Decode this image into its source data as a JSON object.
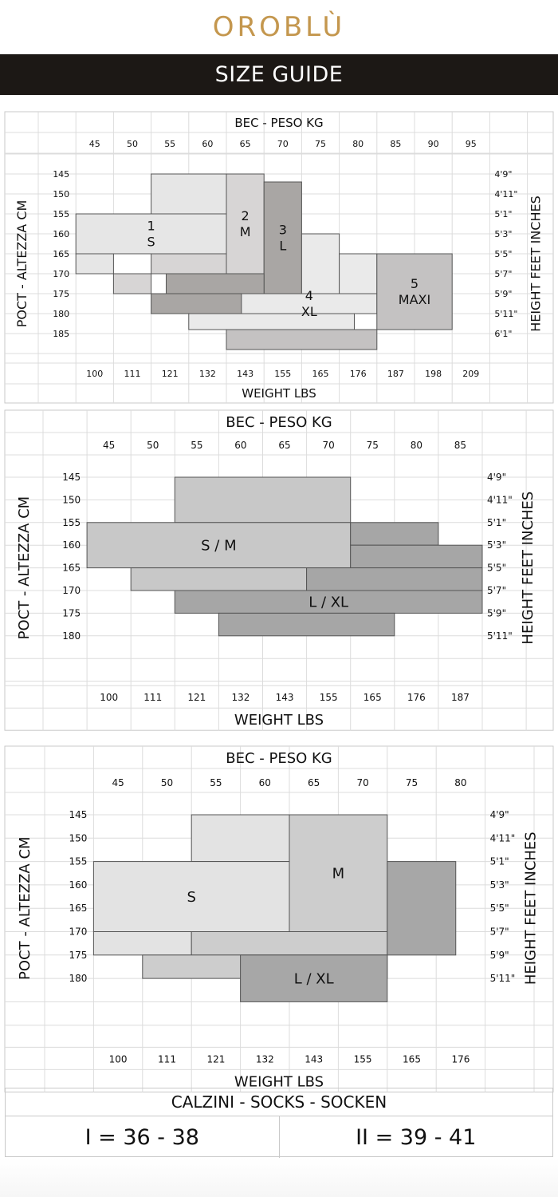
{
  "header": {
    "brand": "OROBLÙ",
    "title": "SIZE GUIDE"
  },
  "colors": {
    "brand": "#c4974e",
    "banner_bg": "#1c1815",
    "grid": "#d0d0d0",
    "outline": "#444444"
  },
  "chart_data": [
    {
      "type": "table",
      "title": "BEC - PESO KG",
      "xlabel": "WEIGHT LBS",
      "ylabel_left": "POCT - ALTEZZA CM",
      "ylabel_right": "HEIGHT FEET INCHES",
      "kg": [
        "45",
        "50",
        "55",
        "60",
        "65",
        "70",
        "75",
        "80",
        "85",
        "90",
        "95"
      ],
      "lbs": [
        "100",
        "111",
        "121",
        "132",
        "143",
        "155",
        "165",
        "176",
        "187",
        "198",
        "209"
      ],
      "cm": [
        "145",
        "150",
        "155",
        "160",
        "165",
        "170",
        "175",
        "180",
        "185"
      ],
      "ft": [
        "4'9\"",
        "4'11\"",
        "5'1\"",
        "5'3\"",
        "5'5\"",
        "5'7\"",
        "5'9\"",
        "5'11\"",
        "6'1\""
      ],
      "series": [
        {
          "name": "1 S",
          "label": [
            "1",
            "S"
          ],
          "color": "#e6e6e6",
          "steps": [
            [
              55,
              65,
              145,
              155
            ],
            [
              45,
              65,
              155,
              165
            ],
            [
              45,
              50,
              165,
              170
            ]
          ]
        },
        {
          "name": "2 M",
          "label": [
            "2",
            "M"
          ],
          "color": "#d7d5d5",
          "steps": [
            [
              65,
              70,
              145,
              170
            ],
            [
              55,
              65,
              165,
              170
            ],
            [
              50,
              55,
              170,
              175
            ]
          ]
        },
        {
          "name": "3 L",
          "label": [
            "3",
            "L"
          ],
          "color": "#a9a6a4",
          "steps": [
            [
              70,
              75,
              147,
              175
            ],
            [
              57,
              70,
              170,
              175
            ],
            [
              55,
              72,
              175,
              180
            ]
          ]
        },
        {
          "name": "4 XL",
          "label": [
            "4",
            "XL"
          ],
          "color": "#eaeaea",
          "steps": [
            [
              75,
              80,
              160,
              175
            ],
            [
              80,
              85,
              165,
              175
            ],
            [
              67,
              85,
              175,
              180
            ],
            [
              60,
              82,
              180,
              184
            ]
          ]
        },
        {
          "name": "5 MAXI",
          "label": [
            "5",
            "MAXI"
          ],
          "color": "#c4c2c2",
          "steps": [
            [
              85,
              95,
              165,
              184
            ],
            [
              65,
              85,
              184,
              189
            ]
          ]
        }
      ]
    },
    {
      "type": "table",
      "title": "BEC - PESO KG",
      "xlabel": "WEIGHT LBS",
      "ylabel_left": "POCT - ALTEZZA CM",
      "ylabel_right": "HEIGHT FEET INCHES",
      "kg": [
        "45",
        "50",
        "55",
        "60",
        "65",
        "70",
        "75",
        "80",
        "85"
      ],
      "lbs": [
        "100",
        "111",
        "121",
        "132",
        "143",
        "155",
        "165",
        "176",
        "187"
      ],
      "cm": [
        "145",
        "150",
        "155",
        "160",
        "165",
        "170",
        "175",
        "180"
      ],
      "ft": [
        "4'9\"",
        "4'11\"",
        "5'1\"",
        "5'3\"",
        "5'5\"",
        "5'7\"",
        "5'9\"",
        "5'11\""
      ],
      "series": [
        {
          "name": "S / M",
          "label": [
            "S / M"
          ],
          "color": "#c8c8c8",
          "steps": [
            [
              55,
              75,
              145,
              155
            ],
            [
              45,
              75,
              155,
              165
            ],
            [
              50,
              70,
              165,
              170
            ]
          ]
        },
        {
          "name": "L / XL",
          "label": [
            "L / XL"
          ],
          "color": "#a6a6a6",
          "steps": [
            [
              75,
              85,
              155,
              160
            ],
            [
              75,
              90,
              160,
              165
            ],
            [
              70,
              90,
              165,
              170
            ],
            [
              55,
              90,
              170,
              175
            ],
            [
              60,
              80,
              175,
              180
            ]
          ]
        }
      ]
    },
    {
      "type": "table",
      "title": "BEC - PESO KG",
      "xlabel": "WEIGHT LBS",
      "ylabel_left": "POCT - ALTEZZA CM",
      "ylabel_right": "HEIGHT FEET INCHES",
      "kg": [
        "45",
        "50",
        "55",
        "60",
        "65",
        "70",
        "75",
        "80"
      ],
      "lbs": [
        "100",
        "111",
        "121",
        "132",
        "143",
        "155",
        "165",
        "176"
      ],
      "cm": [
        "145",
        "150",
        "155",
        "160",
        "165",
        "170",
        "175",
        "180"
      ],
      "ft": [
        "4'9\"",
        "4'11\"",
        "5'1\"",
        "5'3\"",
        "5'5\"",
        "5'7\"",
        "5'9\"",
        "5'11\""
      ],
      "series": [
        {
          "name": "S",
          "label": [
            "S"
          ],
          "color": "#e3e3e3",
          "steps": [
            [
              55,
              65,
              145,
              155
            ],
            [
              45,
              65,
              155,
              170
            ],
            [
              45,
              55,
              170,
              175
            ]
          ]
        },
        {
          "name": "M",
          "label": [
            "M"
          ],
          "color": "#cdcdcd",
          "steps": [
            [
              65,
              75,
              145,
              170
            ],
            [
              55,
              75,
              170,
              175
            ],
            [
              50,
              75,
              175,
              180
            ]
          ]
        },
        {
          "name": "L / XL",
          "label": [
            "L / XL"
          ],
          "color": "#a7a7a7",
          "steps": [
            [
              75,
              82,
              155,
              175
            ],
            [
              60,
              75,
              175,
              185
            ]
          ]
        }
      ]
    }
  ],
  "socks": {
    "title": "CALZINI - SOCKS - SOCKEN",
    "sizes": [
      "I = 36 - 38",
      "II = 39 - 41"
    ]
  }
}
